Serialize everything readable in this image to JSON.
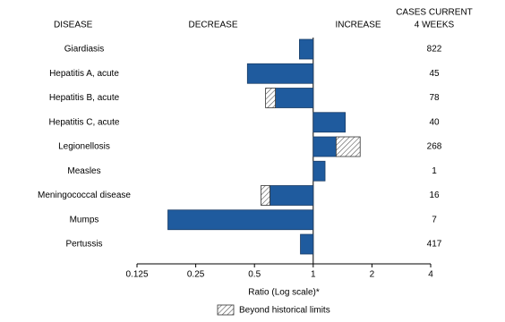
{
  "chart_data": {
    "type": "bar",
    "headers": {
      "disease": "DISEASE",
      "decrease": "DECREASE",
      "increase": "INCREASE",
      "cases": [
        "CASES CURRENT",
        "4 WEEKS"
      ]
    },
    "categories": [
      "Giardiasis",
      "Hepatitis A, acute",
      "Hepatitis B, acute",
      "Hepatitis C, acute",
      "Legionellosis",
      "Measles",
      "Meningococcal disease",
      "Mumps",
      "Pertussis"
    ],
    "values": [
      0.85,
      0.46,
      0.57,
      1.46,
      1.74,
      1.15,
      0.54,
      0.18,
      0.86
    ],
    "historical_limits": [
      null,
      null,
      0.64,
      null,
      1.31,
      null,
      0.6,
      null,
      null
    ],
    "cases": [
      822,
      45,
      78,
      40,
      268,
      1,
      16,
      7,
      417
    ],
    "color": "#1f5b9e",
    "log_scale": true,
    "xlim": [
      0.125,
      4
    ],
    "xticks": [
      0.125,
      0.25,
      0.5,
      1,
      2,
      4
    ],
    "x_label": "Ratio (Log scale)*",
    "legend": "Beyond historical limits"
  }
}
